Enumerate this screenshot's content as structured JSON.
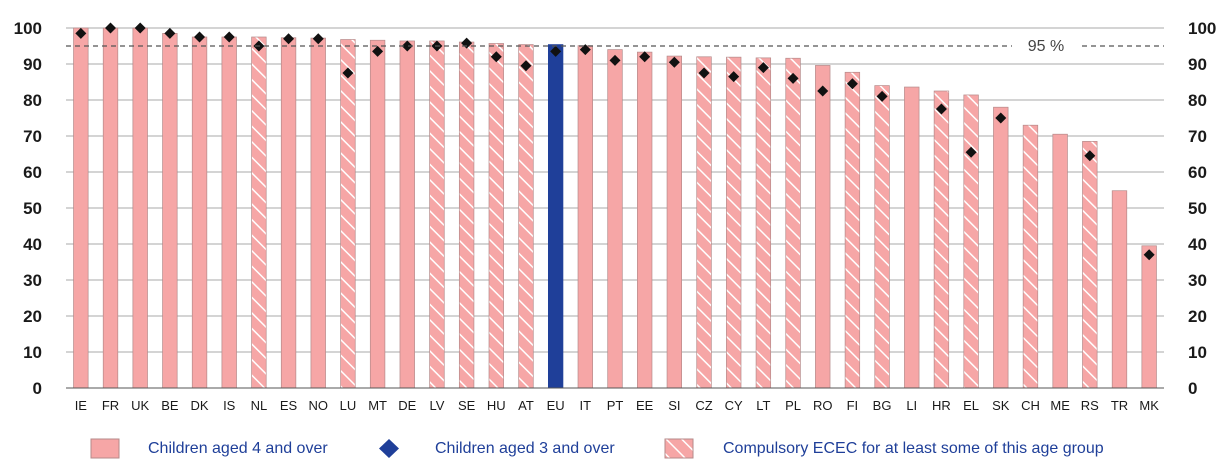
{
  "chart_data": {
    "type": "bar",
    "categories": [
      "IE",
      "FR",
      "UK",
      "BE",
      "DK",
      "IS",
      "NL",
      "ES",
      "NO",
      "LU",
      "MT",
      "DE",
      "LV",
      "SE",
      "HU",
      "AT",
      "EU",
      "IT",
      "PT",
      "EE",
      "SI",
      "CZ",
      "CY",
      "LT",
      "PL",
      "RO",
      "FI",
      "BG",
      "LI",
      "HR",
      "EL",
      "SK",
      "CH",
      "ME",
      "RS",
      "TR",
      "MK"
    ],
    "series": [
      {
        "name": "Children aged 4 and over",
        "values": [
          100,
          100,
          100,
          98.5,
          97.5,
          97.5,
          97.5,
          97.3,
          97.2,
          96.8,
          96.6,
          96.4,
          96.4,
          96.1,
          95.7,
          95.4,
          95.4,
          95.1,
          94.0,
          93.3,
          92.2,
          92.0,
          91.9,
          91.7,
          91.6,
          89.6,
          87.7,
          84.0,
          83.6,
          82.5,
          81.4,
          78.0,
          73.0,
          70.5,
          68.5,
          54.8,
          39.5
        ],
        "compulsory": [
          false,
          false,
          false,
          false,
          false,
          false,
          true,
          false,
          false,
          true,
          false,
          false,
          true,
          true,
          true,
          true,
          false,
          false,
          false,
          false,
          false,
          true,
          true,
          true,
          true,
          false,
          true,
          true,
          false,
          true,
          true,
          false,
          true,
          false,
          true,
          false,
          false
        ]
      },
      {
        "name": "Children aged 3 and over",
        "values": [
          98.5,
          100,
          100,
          98.5,
          97.5,
          97.5,
          95,
          97,
          97,
          87.5,
          93.5,
          95,
          95,
          95.8,
          92,
          89.5,
          93.5,
          94,
          91,
          92,
          90.5,
          87.5,
          86.5,
          89,
          86,
          82.5,
          84.5,
          81,
          null,
          77.5,
          65.5,
          75,
          null,
          null,
          64.5,
          null,
          37
        ]
      }
    ],
    "reference_line": {
      "value": 95,
      "label": "95 %"
    },
    "highlight_category": "EU",
    "ylim": [
      0,
      100
    ],
    "yticks": [
      0,
      10,
      20,
      30,
      40,
      50,
      60,
      70,
      80,
      90,
      100
    ],
    "grid": true,
    "title": "",
    "xlabel": "",
    "ylabel": ""
  },
  "colors": {
    "bar": "#f6a6a6",
    "bar_stroke": "#b58a8a",
    "eu_bar": "#1f3f99",
    "marker": "#111111",
    "hatch": "#ffffff",
    "legend_text": "#1f3f99",
    "legend_marker": "#1f3f99"
  },
  "legend": [
    {
      "kind": "bar",
      "label": "Children aged 4 and over"
    },
    {
      "kind": "marker",
      "label": "Children aged 3 and over"
    },
    {
      "kind": "hatched",
      "label": "Compulsory ECEC for at least some of this age group"
    }
  ]
}
